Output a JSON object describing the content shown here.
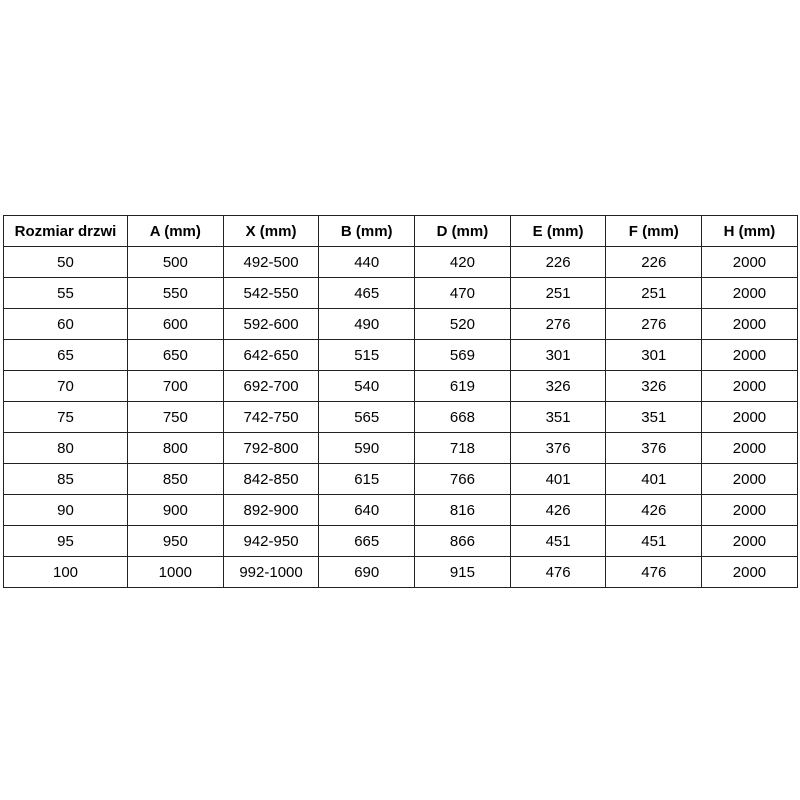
{
  "colors": {
    "background": "#ffffff",
    "border": "#222222",
    "text": "#000000"
  },
  "chart_data": {
    "type": "table",
    "title": "",
    "columns": [
      "Rozmiar drzwi",
      "A (mm)",
      "X (mm)",
      "B (mm)",
      "D (mm)",
      "E (mm)",
      "F (mm)",
      "H (mm)"
    ],
    "rows": [
      [
        "50",
        "500",
        "492-500",
        "440",
        "420",
        "226",
        "226",
        "2000"
      ],
      [
        "55",
        "550",
        "542-550",
        "465",
        "470",
        "251",
        "251",
        "2000"
      ],
      [
        "60",
        "600",
        "592-600",
        "490",
        "520",
        "276",
        "276",
        "2000"
      ],
      [
        "65",
        "650",
        "642-650",
        "515",
        "569",
        "301",
        "301",
        "2000"
      ],
      [
        "70",
        "700",
        "692-700",
        "540",
        "619",
        "326",
        "326",
        "2000"
      ],
      [
        "75",
        "750",
        "742-750",
        "565",
        "668",
        "351",
        "351",
        "2000"
      ],
      [
        "80",
        "800",
        "792-800",
        "590",
        "718",
        "376",
        "376",
        "2000"
      ],
      [
        "85",
        "850",
        "842-850",
        "615",
        "766",
        "401",
        "401",
        "2000"
      ],
      [
        "90",
        "900",
        "892-900",
        "640",
        "816",
        "426",
        "426",
        "2000"
      ],
      [
        "95",
        "950",
        "942-950",
        "665",
        "866",
        "451",
        "451",
        "2000"
      ],
      [
        "100",
        "1000",
        "992-1000",
        "690",
        "915",
        "476",
        "476",
        "2000"
      ]
    ]
  }
}
